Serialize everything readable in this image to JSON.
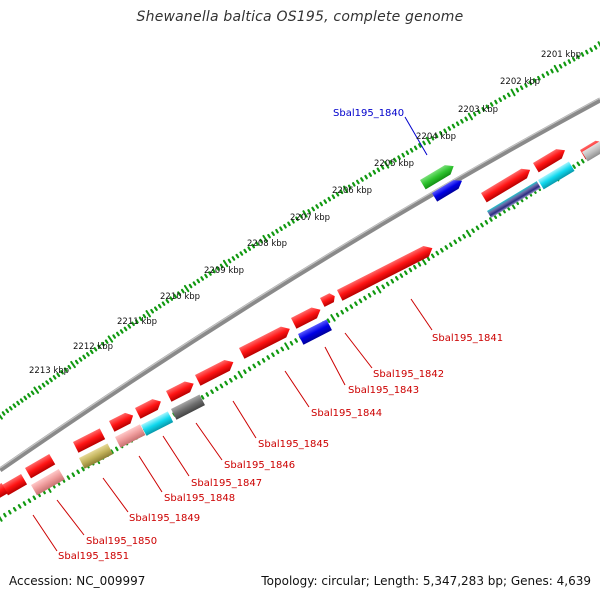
{
  "title": "Shewanella baltica OS195, complete genome",
  "footer": {
    "accession": "Accession: NC_009997",
    "summary": "Topology: circular; Length: 5,347,283 bp; Genes: 4,639"
  },
  "kbp_labels": [
    "2201 kbp",
    "2202 kbp",
    "2203 kbp",
    "2204 kbp",
    "2205 kbp",
    "2206 kbp",
    "2207 kbp",
    "2208 kbp",
    "2209 kbp",
    "2210 kbp",
    "2211 kbp",
    "2212 kbp",
    "2213 kbp"
  ],
  "gene_labels": [
    {
      "text": "Sbal195_1840",
      "color": "#0000cc"
    },
    {
      "text": "Sbal195_1841",
      "color": "#cc0000"
    },
    {
      "text": "Sbal195_1842",
      "color": "#cc0000"
    },
    {
      "text": "Sbal195_1843",
      "color": "#cc0000"
    },
    {
      "text": "Sbal195_1844",
      "color": "#cc0000"
    },
    {
      "text": "Sbal195_1845",
      "color": "#cc0000"
    },
    {
      "text": "Sbal195_1846",
      "color": "#cc0000"
    },
    {
      "text": "Sbal195_1847",
      "color": "#cc0000"
    },
    {
      "text": "Sbal195_1848",
      "color": "#cc0000"
    },
    {
      "text": "Sbal195_1849",
      "color": "#cc0000"
    },
    {
      "text": "Sbal195_1850",
      "color": "#cc0000"
    },
    {
      "text": "Sbal195_1851",
      "color": "#cc0000"
    }
  ],
  "colors": {
    "backbone": "#888888",
    "tick": "#119911",
    "forward_gene": "#ff1a1a",
    "green_gene": "#33cc33",
    "blue_gene": "#0a0adf",
    "pink_gene": "#f2a0a0",
    "cyan_gene": "#22ddee",
    "gray_gene": "#777777",
    "olive_gene": "#c8b860",
    "light_gray_gene": "#bbbbbb"
  }
}
